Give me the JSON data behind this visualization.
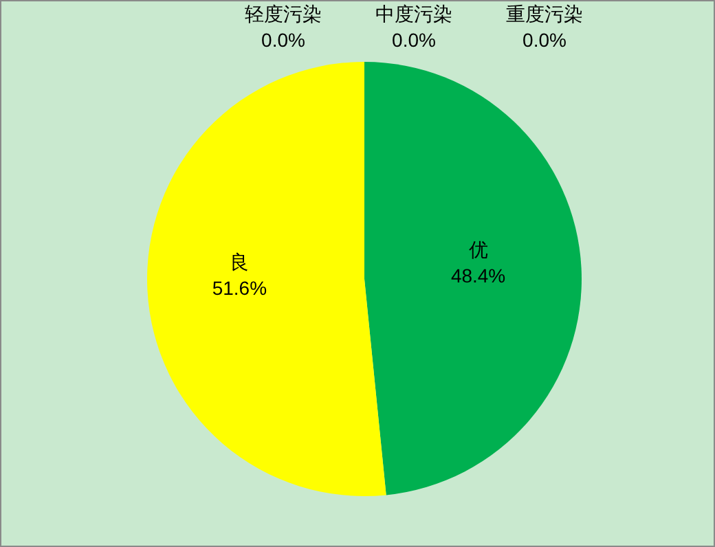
{
  "chart_data": {
    "type": "pie",
    "categories": [
      "优",
      "良",
      "轻度污染",
      "中度污染",
      "重度污染"
    ],
    "values": [
      48.4,
      51.6,
      0.0,
      0.0,
      0.0
    ],
    "value_labels": [
      "48.4%",
      "51.6%",
      "0.0%",
      "0.0%",
      "0.0%"
    ],
    "colors": [
      "#00b050",
      "#ffff00",
      "#ff9900",
      "#ff0000",
      "#993366"
    ],
    "legend": false
  }
}
